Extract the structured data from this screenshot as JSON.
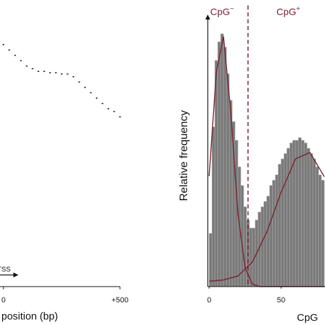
{
  "chart_data": [
    {
      "type": "scatter",
      "x_label": "position (bp)",
      "annotation": "TSS",
      "x": [
        0,
        25,
        50,
        75,
        100,
        125,
        150,
        175,
        200,
        225,
        250,
        275,
        300,
        325,
        350,
        375,
        400,
        425,
        450,
        475,
        500
      ],
      "values": [
        91,
        89,
        87,
        85,
        83,
        82,
        81,
        81,
        80.5,
        80.5,
        80,
        80,
        79,
        77,
        75,
        73,
        71,
        69,
        67,
        66,
        64
      ],
      "color": "#222222",
      "xlim": [
        0,
        500
      ],
      "xticks": [
        0,
        {
          "value": 500,
          "label": "+500"
        }
      ],
      "ylim": [
        0,
        100
      ]
    },
    {
      "type": "histogram",
      "y_label": "Relative frequency",
      "x_label": "CpG",
      "annotations": [
        {
          "text": "CpG",
          "sup": "−",
          "x": 9
        },
        {
          "text": "CpG",
          "sup": "+",
          "x": 55
        }
      ],
      "threshold": 27,
      "bins": [
        0,
        2,
        4,
        6,
        8,
        10,
        12,
        14,
        16,
        18,
        20,
        22,
        24,
        26,
        28,
        30,
        32,
        34,
        36,
        38,
        40,
        42,
        44,
        46,
        48,
        50,
        52,
        54,
        56,
        58,
        60,
        62,
        64,
        66,
        68,
        70,
        72,
        74,
        76,
        78,
        80
      ],
      "values": [
        20,
        60,
        85,
        92,
        95,
        90,
        80,
        70,
        62,
        55,
        45,
        38,
        30,
        25,
        22,
        22,
        25,
        28,
        30,
        32,
        34,
        38,
        40,
        42,
        46,
        48,
        50,
        52,
        54,
        55,
        55,
        56,
        55,
        54,
        52,
        50,
        48,
        45,
        42,
        40
      ],
      "color": "#7a7a7a",
      "fit_color": "#7b1f2e",
      "fits": [
        {
          "x": [
            0,
            5,
            10,
            15,
            20,
            25,
            30,
            35,
            40,
            50,
            60,
            70,
            80
          ],
          "values": [
            41.5,
            80.7,
            94,
            65.8,
            27.6,
            7,
            1,
            0,
            0,
            0,
            0,
            0,
            0
          ]
        },
        {
          "x": [
            0,
            10,
            20,
            30,
            40,
            50,
            60,
            70,
            80
          ],
          "values": [
            2,
            2.5,
            4,
            9.2,
            20.4,
            35.5,
            48,
            50.4,
            41.3
          ]
        }
      ],
      "xlim": [
        0,
        80
      ],
      "xticks": [
        0,
        50
      ],
      "ylim": [
        0,
        100
      ]
    }
  ]
}
